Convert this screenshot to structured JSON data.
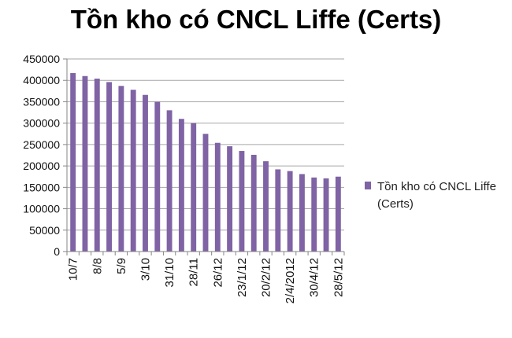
{
  "chart_data": {
    "type": "bar",
    "title": "Tồn kho có CNCL Liffe (Certs)",
    "legend": {
      "position": "right"
    },
    "grid": {
      "horizontal": true
    },
    "ylim": [
      0,
      450000
    ],
    "yticks": [
      0,
      50000,
      100000,
      150000,
      200000,
      250000,
      300000,
      350000,
      400000,
      450000
    ],
    "x_tick_labels": [
      "10/7",
      "8/8",
      "5/9",
      "3/10",
      "31/10",
      "28/11",
      "26/12",
      "23/1/12",
      "20/2/12",
      "2/4/2012",
      "30/4/12",
      "28/5/12"
    ],
    "series": [
      {
        "name": "Tồn kho có CNCL Liffe (Certs)",
        "color": "#7f63a4",
        "values": [
          417000,
          410000,
          404000,
          396000,
          387000,
          378000,
          366000,
          350000,
          330000,
          310000,
          300000,
          275000,
          254000,
          246000,
          235000,
          226000,
          211000,
          192000,
          188000,
          181000,
          173000,
          171000,
          175000
        ]
      }
    ]
  }
}
